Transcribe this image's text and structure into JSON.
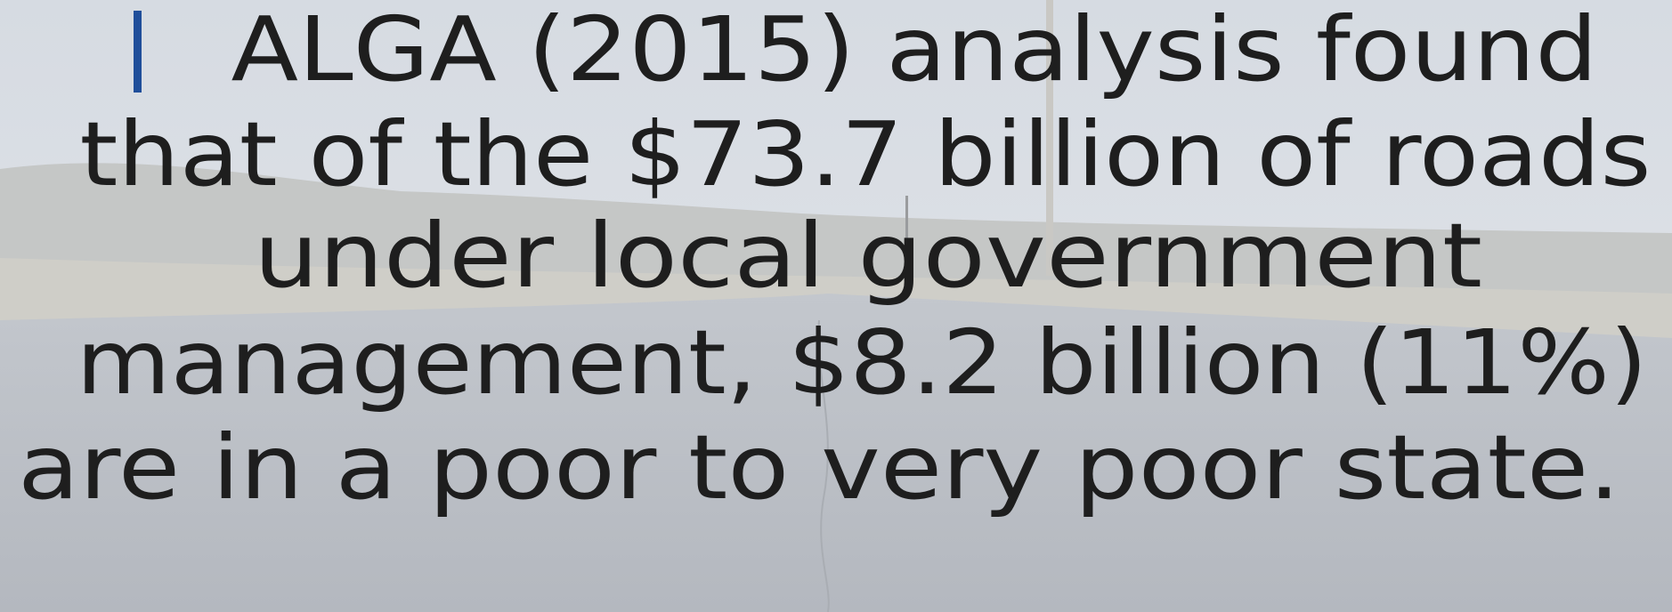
{
  "slide": {
    "lines": [
      "ALGA (2015) analysis found",
      "that of the $73.7 billion of roads",
      "under local government",
      "management, $8.2 billion (11%)",
      "are in a poor to very poor state."
    ]
  }
}
